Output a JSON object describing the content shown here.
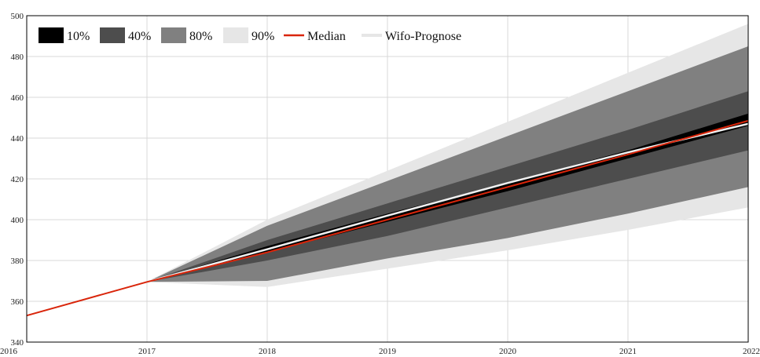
{
  "chart_data": {
    "type": "area",
    "title": "",
    "xlabel": "",
    "ylabel": "",
    "xlim": [
      2016,
      2022
    ],
    "ylim": [
      340,
      500
    ],
    "grid": true,
    "legend_position": "top-left",
    "x_ticks": [
      "2016",
      "2017",
      "2018",
      "2019",
      "2020",
      "2021",
      "2022"
    ],
    "y_ticks": [
      "340",
      "360",
      "380",
      "400",
      "420",
      "440",
      "460",
      "480",
      "500"
    ],
    "x": [
      2017,
      2018,
      2019,
      2020,
      2021,
      2022
    ],
    "bands": [
      {
        "name": "90%",
        "color": "#e6e6e6",
        "lower": [
          369.5,
          367,
          376,
          385,
          395,
          406
        ],
        "upper": [
          369.5,
          400,
          424,
          448,
          472,
          496
        ]
      },
      {
        "name": "80%",
        "color": "#808080",
        "lower": [
          369.5,
          370,
          381,
          391,
          403,
          416
        ],
        "upper": [
          369.5,
          397,
          419,
          441,
          463,
          485
        ]
      },
      {
        "name": "40%",
        "color": "#4d4d4d",
        "lower": [
          369.5,
          380,
          392,
          406,
          420,
          434
        ],
        "upper": [
          369.5,
          390,
          408,
          426,
          444,
          463
        ]
      },
      {
        "name": "10%",
        "color": "#000000",
        "lower": [
          369.5,
          384,
          399,
          414,
          430,
          446
        ],
        "upper": [
          369.5,
          387,
          403,
          418,
          434,
          452
        ]
      }
    ],
    "series": [
      {
        "name": "Median",
        "color": "#d9250a",
        "x": [
          2016,
          2017,
          2018,
          2019,
          2020,
          2021,
          2022
        ],
        "values": [
          353,
          369.5,
          384,
          400,
          416,
          432,
          448.5
        ]
      },
      {
        "name": "Wifo-Prognose",
        "color": "#f0f0f0",
        "x": [
          2017,
          2018,
          2019,
          2020,
          2021,
          2022
        ],
        "values": [
          369.5,
          385.5,
          402,
          418,
          433,
          447
        ]
      }
    ],
    "legend": [
      {
        "label": "10%",
        "color": "#000000",
        "kind": "box"
      },
      {
        "label": "40%",
        "color": "#4d4d4d",
        "kind": "box"
      },
      {
        "label": "80%",
        "color": "#808080",
        "kind": "box"
      },
      {
        "label": "90%",
        "color": "#e6e6e6",
        "kind": "box"
      },
      {
        "label": "Median",
        "color": "#d9250a",
        "kind": "line"
      },
      {
        "label": "Wifo-Prognose",
        "color": "#e6e6e6",
        "kind": "line"
      }
    ]
  }
}
